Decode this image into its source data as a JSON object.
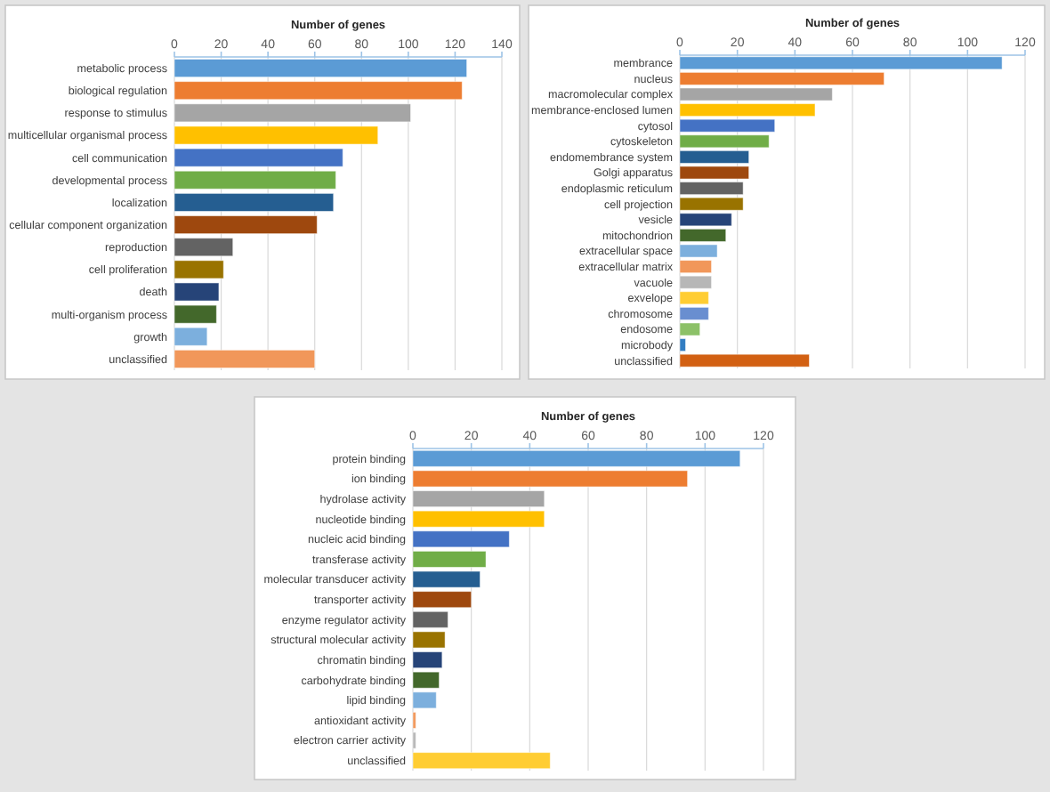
{
  "chart_data": [
    {
      "type": "bar",
      "orientation": "horizontal",
      "xlabel": "Number of genes",
      "xlim": [
        0,
        140
      ],
      "xticks": [
        0,
        20,
        40,
        60,
        80,
        100,
        120,
        140
      ],
      "grid": "x",
      "categories": [
        "metabolic process",
        "biological regulation",
        "response to stimulus",
        "multicellular organismal process",
        "cell communication",
        "developmental process",
        "localization",
        "cellular component organization",
        "reproduction",
        "cell proliferation",
        "death",
        "multi-organism process",
        "growth",
        "unclassified"
      ],
      "values": [
        125,
        123,
        101,
        87,
        72,
        69,
        68,
        61,
        25,
        21,
        19,
        18,
        14,
        60
      ],
      "colors": [
        "#5b9bd5",
        "#ed7d31",
        "#a5a5a5",
        "#ffc000",
        "#4472c4",
        "#70ad47",
        "#255e91",
        "#9e480e",
        "#636363",
        "#997300",
        "#264478",
        "#43682b",
        "#7cafdd",
        "#f1975a"
      ]
    },
    {
      "type": "bar",
      "orientation": "horizontal",
      "xlabel": "Number of genes",
      "xlim": [
        0,
        120
      ],
      "xticks": [
        0,
        20,
        40,
        60,
        80,
        100,
        120
      ],
      "grid": "x",
      "categories": [
        "membrance",
        "nucleus",
        "macromolecular complex",
        "membrance-enclosed lumen",
        "cytosol",
        "cytoskeleton",
        "endomembrance system",
        "Golgi apparatus",
        "endoplasmic reticulum",
        "cell projection",
        "vesicle",
        "mitochondrion",
        "extracellular space",
        "extracellular matrix",
        "vacuole",
        "exvelope",
        "chromosome",
        "endosome",
        "microbody",
        "unclassified"
      ],
      "values": [
        112,
        71,
        53,
        47,
        33,
        31,
        24,
        24,
        22,
        22,
        18,
        16,
        13,
        11,
        11,
        10,
        10,
        7,
        2,
        45
      ],
      "colors": [
        "#5b9bd5",
        "#ed7d31",
        "#a5a5a5",
        "#ffc000",
        "#4472c4",
        "#70ad47",
        "#255e91",
        "#9e480e",
        "#636363",
        "#997300",
        "#264478",
        "#43682b",
        "#7cafdd",
        "#f1975a",
        "#b7b7b7",
        "#ffcd33",
        "#698ed0",
        "#8cc168",
        "#327dc2",
        "#d26012"
      ]
    },
    {
      "type": "bar",
      "orientation": "horizontal",
      "xlabel": "Number of genes",
      "xlim": [
        0,
        120
      ],
      "xticks": [
        0,
        20,
        40,
        60,
        80,
        100,
        120
      ],
      "grid": "x",
      "categories": [
        "protein binding",
        "ion binding",
        "hydrolase activity",
        "nucleotide binding",
        "nucleic acid binding",
        "transferase activity",
        "molecular transducer activity",
        "transporter activity",
        "enzyme regulator activity",
        "structural molecular activity",
        "chromatin binding",
        "carbohydrate binding",
        "lipid binding",
        "antioxidant activity",
        "electron carrier activity",
        "unclassified"
      ],
      "values": [
        112,
        94,
        45,
        45,
        33,
        25,
        23,
        20,
        12,
        11,
        10,
        9,
        8,
        1,
        1,
        47
      ],
      "colors": [
        "#5b9bd5",
        "#ed7d31",
        "#a5a5a5",
        "#ffc000",
        "#4472c4",
        "#70ad47",
        "#255e91",
        "#9e480e",
        "#636363",
        "#997300",
        "#264478",
        "#43682b",
        "#7cafdd",
        "#f1975a",
        "#b7b7b7",
        "#ffcd33"
      ]
    }
  ]
}
